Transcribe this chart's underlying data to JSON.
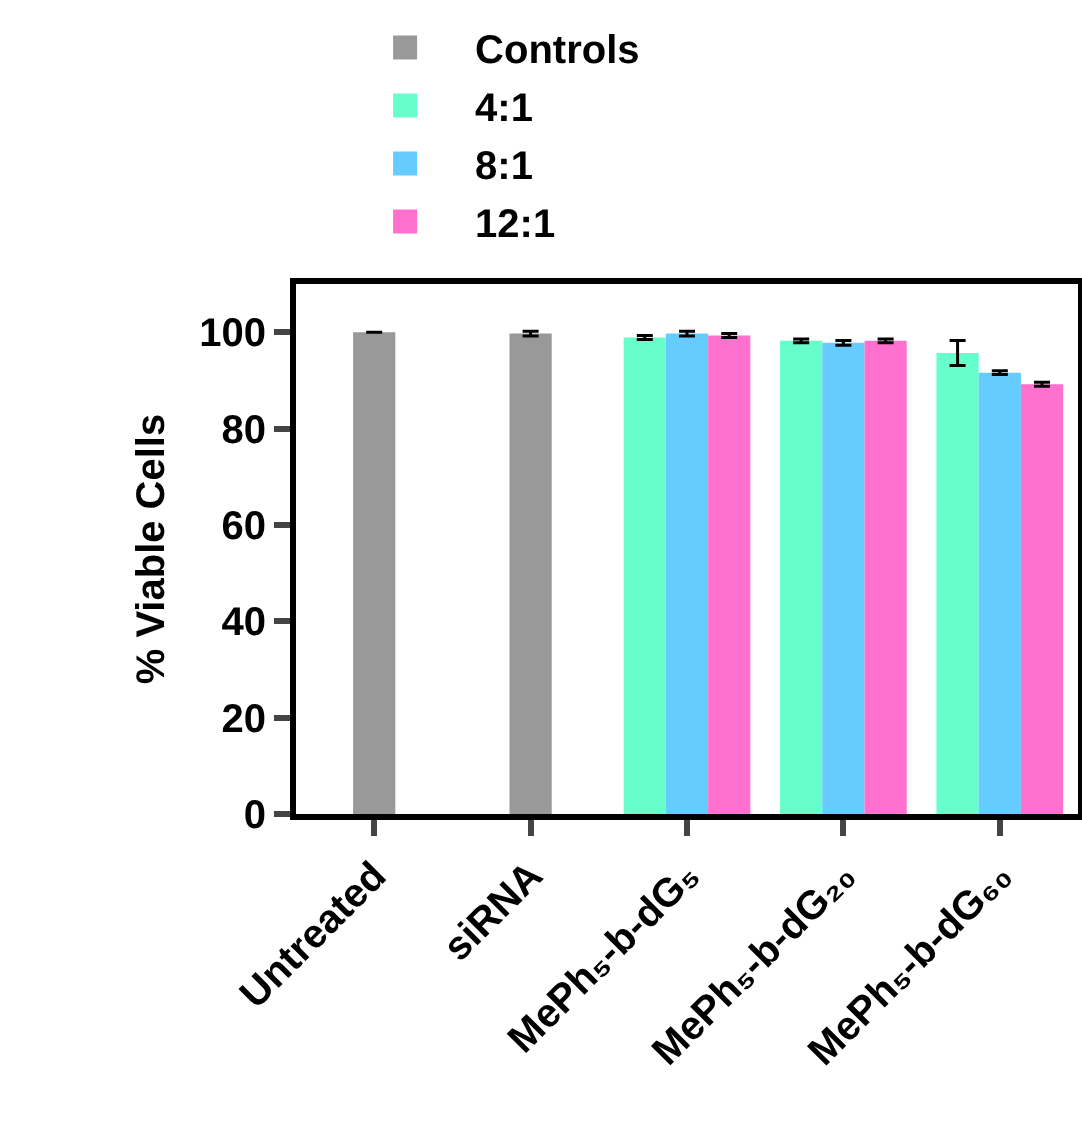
{
  "chart_data": {
    "type": "bar",
    "ylabel": "% Viable Cells",
    "categories": [
      "Untreated",
      "siRNA",
      "MePh₅-b-dG₅",
      "MePh₅-b-dG₂₀",
      "MePh₅-b-dG₆₀"
    ],
    "series": [
      {
        "name": "Controls",
        "color": "#999999",
        "values": [
          100,
          99.7,
          null,
          null,
          null
        ],
        "errors": [
          null,
          0.5,
          null,
          null,
          null
        ]
      },
      {
        "name": "4:1",
        "color": "#66ffcc",
        "values": [
          null,
          null,
          98.9,
          98.2,
          95.7
        ],
        "errors": [
          null,
          null,
          0.4,
          0.4,
          2.6
        ]
      },
      {
        "name": "8:1",
        "color": "#66ccff",
        "values": [
          null,
          null,
          99.7,
          97.8,
          91.6
        ],
        "errors": [
          null,
          null,
          0.5,
          0.5,
          0.4
        ]
      },
      {
        "name": "12:1",
        "color": "#ff70cf",
        "values": [
          null,
          null,
          99.3,
          98.2,
          89.2
        ],
        "errors": [
          null,
          null,
          0.4,
          0.4,
          0.4
        ]
      }
    ],
    "ylim": [
      0,
      110
    ],
    "yticks": [
      0,
      20,
      40,
      60,
      80,
      100
    ],
    "grid": false,
    "legend": "top left"
  }
}
